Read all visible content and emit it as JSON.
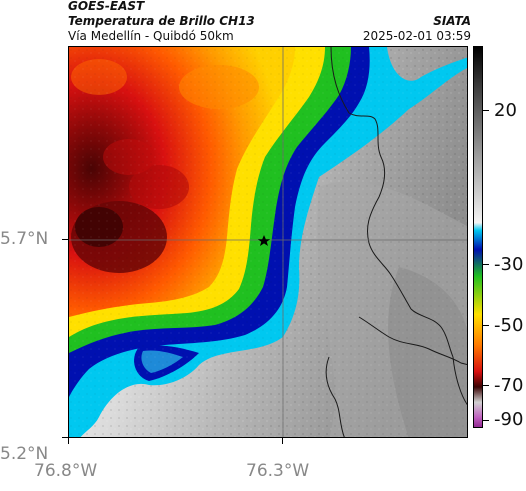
{
  "header": {
    "source": "GOES-EAST",
    "product": "Temperatura de Brillo CH13",
    "region": "Vía Medellín - Quibdó 50km",
    "organization": "SIATA",
    "timestamp": "2025-02-01 03:59"
  },
  "map": {
    "latitude_labels": [
      "5.7°N",
      "5.2°N"
    ],
    "longitude_labels": [
      "76.8°W",
      "76.3°W"
    ],
    "marker_icon": "star-icon",
    "gridlines": true,
    "colors": {
      "very_cold": "#5a0505",
      "cold": "#d81010",
      "mid": "#ff7a00",
      "warmish": "#ffe000",
      "green": "#20c020",
      "blue_edge": "#0010b0",
      "cyan": "#00c8f0",
      "ground_light": "#e6e6e6",
      "ground_dark": "#9a9a9a",
      "border_line": "#1a1a1a"
    }
  },
  "colorbar": {
    "tick_labels": [
      "20",
      "-30",
      "-50",
      "-70",
      "-90"
    ],
    "unit_icon": "colorbar-gradient"
  }
}
